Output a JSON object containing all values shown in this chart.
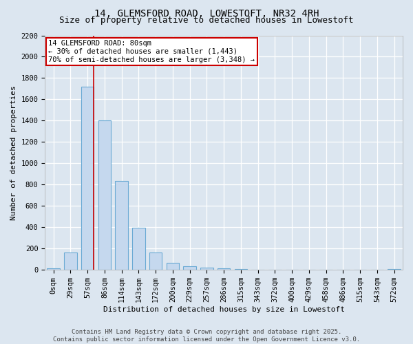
{
  "title": "14, GLEMSFORD ROAD, LOWESTOFT, NR32 4RH",
  "subtitle": "Size of property relative to detached houses in Lowestoft",
  "xlabel": "Distribution of detached houses by size in Lowestoft",
  "ylabel": "Number of detached properties",
  "categories": [
    "0sqm",
    "29sqm",
    "57sqm",
    "86sqm",
    "114sqm",
    "143sqm",
    "172sqm",
    "200sqm",
    "229sqm",
    "257sqm",
    "286sqm",
    "315sqm",
    "343sqm",
    "372sqm",
    "400sqm",
    "429sqm",
    "458sqm",
    "486sqm",
    "515sqm",
    "543sqm",
    "572sqm"
  ],
  "values": [
    15,
    160,
    1720,
    1400,
    835,
    395,
    160,
    65,
    35,
    20,
    15,
    5,
    0,
    0,
    0,
    0,
    0,
    0,
    0,
    0,
    5
  ],
  "bar_color": "#c5d8ee",
  "bar_edge_color": "#6aaad4",
  "vline_color": "#cc0000",
  "vline_index": 2,
  "annotation_text": "14 GLEMSFORD ROAD: 80sqm\n← 30% of detached houses are smaller (1,443)\n70% of semi-detached houses are larger (3,348) →",
  "annotation_box_facecolor": "#ffffff",
  "annotation_box_edgecolor": "#cc0000",
  "ylim": [
    0,
    2200
  ],
  "yticks": [
    0,
    200,
    400,
    600,
    800,
    1000,
    1200,
    1400,
    1600,
    1800,
    2000,
    2200
  ],
  "plot_bg_color": "#dce6f0",
  "fig_bg_color": "#dce6f0",
  "grid_color": "#ffffff",
  "footer_line1": "Contains HM Land Registry data © Crown copyright and database right 2025.",
  "footer_line2": "Contains public sector information licensed under the Open Government Licence v3.0.",
  "title_fontsize": 10,
  "subtitle_fontsize": 9,
  "axis_label_fontsize": 8,
  "tick_fontsize": 7.5,
  "annotation_fontsize": 7.5,
  "footer_fontsize": 6.5
}
